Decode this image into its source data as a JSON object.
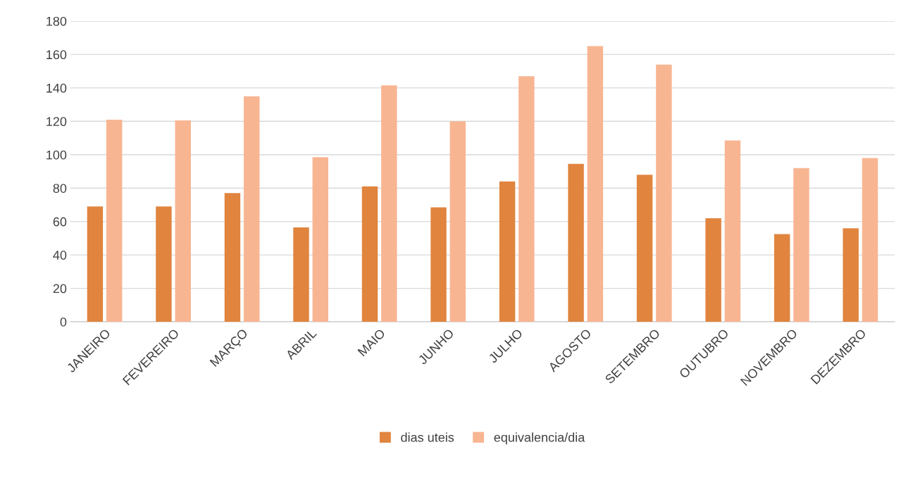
{
  "chart_data": {
    "type": "bar",
    "categories": [
      "JANEIRO",
      "FEVEREIRO",
      "MARÇO",
      "ABRIL",
      "MAIO",
      "JUNHO",
      "JULHO",
      "AGOSTO",
      "SETEMBRO",
      "OUTUBRO",
      "NOVEMBRO",
      "DEZEMBRO"
    ],
    "series": [
      {
        "name": "dias uteis",
        "color": "#e0843e",
        "values": [
          69,
          69,
          77,
          56.5,
          81,
          68.5,
          84,
          94.5,
          88,
          62,
          52.5,
          56
        ]
      },
      {
        "name": "equivalencia/dia",
        "color": "#f8b592",
        "values": [
          121,
          120.5,
          135,
          98.5,
          141.5,
          120,
          147,
          165,
          154,
          108.5,
          92,
          98
        ]
      }
    ],
    "ylim": [
      0,
      180
    ],
    "yticks": [
      0,
      20,
      40,
      60,
      80,
      100,
      120,
      140,
      160,
      180
    ],
    "grid": "y",
    "legend": "bottom"
  }
}
